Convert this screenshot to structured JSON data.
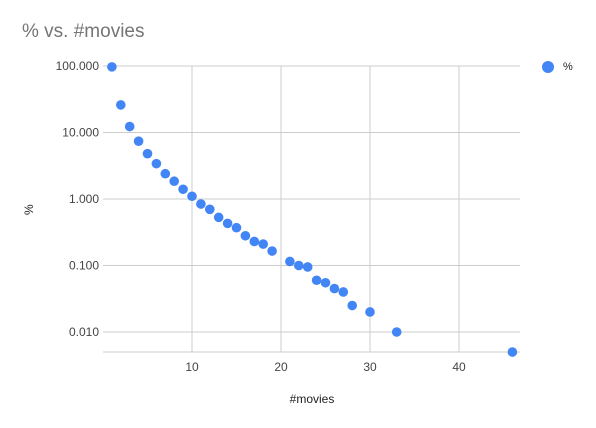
{
  "chart_data": {
    "type": "scatter",
    "title": "% vs. #movies",
    "xlabel": "#movies",
    "ylabel": "%",
    "y_scale": "log",
    "xlim": [
      0,
      47
    ],
    "ylim": [
      0.004,
      110
    ],
    "x_ticks": [
      10,
      20,
      30,
      40
    ],
    "y_ticks": [
      {
        "value": 0.01,
        "label": "0.010"
      },
      {
        "value": 0.1,
        "label": "0.100"
      },
      {
        "value": 1,
        "label": "1.000"
      },
      {
        "value": 10,
        "label": "10.000"
      },
      {
        "value": 100,
        "label": "100.000"
      }
    ],
    "grid": true,
    "legend_position": "top-right",
    "series": [
      {
        "name": "%",
        "color": "#4285f4",
        "points": [
          [
            1,
            97
          ],
          [
            2,
            26
          ],
          [
            3,
            12.3
          ],
          [
            4,
            7.4
          ],
          [
            5,
            4.8
          ],
          [
            6,
            3.4
          ],
          [
            7,
            2.4
          ],
          [
            8,
            1.85
          ],
          [
            9,
            1.4
          ],
          [
            10,
            1.1
          ],
          [
            11,
            0.84
          ],
          [
            12,
            0.7
          ],
          [
            13,
            0.53
          ],
          [
            14,
            0.43
          ],
          [
            15,
            0.37
          ],
          [
            16,
            0.28
          ],
          [
            17,
            0.23
          ],
          [
            18,
            0.21
          ],
          [
            19,
            0.165
          ],
          [
            21,
            0.115
          ],
          [
            22,
            0.1
          ],
          [
            23,
            0.095
          ],
          [
            24,
            0.06
          ],
          [
            25,
            0.055
          ],
          [
            26,
            0.045
          ],
          [
            27,
            0.04
          ],
          [
            28,
            0.025
          ],
          [
            30,
            0.02
          ],
          [
            33,
            0.01
          ],
          [
            46,
            0.005
          ]
        ]
      }
    ]
  }
}
